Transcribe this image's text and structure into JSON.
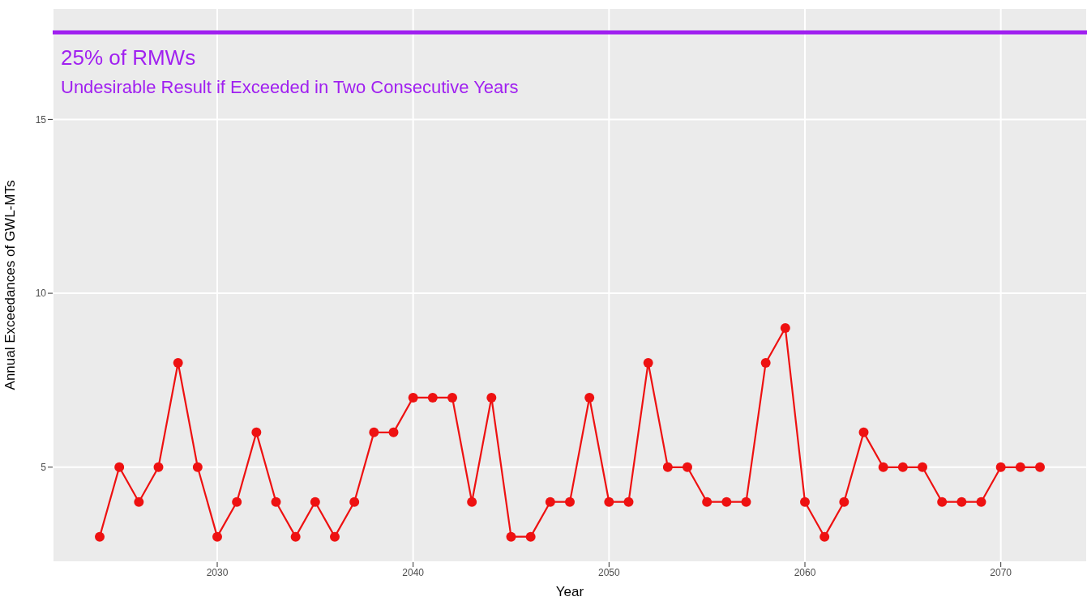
{
  "chart_data": {
    "type": "line",
    "xlabel": "Year",
    "ylabel": "Annual Exceedances of GWL-MTs",
    "x": [
      2024,
      2025,
      2026,
      2027,
      2028,
      2029,
      2030,
      2031,
      2032,
      2033,
      2034,
      2035,
      2036,
      2037,
      2038,
      2039,
      2040,
      2041,
      2042,
      2043,
      2044,
      2045,
      2046,
      2047,
      2048,
      2049,
      2050,
      2051,
      2052,
      2053,
      2054,
      2055,
      2056,
      2057,
      2058,
      2059,
      2060,
      2061,
      2062,
      2063,
      2064,
      2065,
      2066,
      2067,
      2068,
      2069,
      2070,
      2071,
      2072
    ],
    "series": [
      {
        "color": "#ee1111",
        "values": [
          3,
          5,
          4,
          5,
          8,
          5,
          3,
          4,
          6,
          4,
          3,
          4,
          3,
          4,
          6,
          6,
          7,
          7,
          7,
          4,
          7,
          3,
          3,
          4,
          4,
          7,
          4,
          4,
          8,
          5,
          5,
          4,
          4,
          4,
          8,
          9,
          4,
          3,
          4,
          6,
          5,
          5,
          5,
          4,
          4,
          4,
          5,
          5,
          5
        ]
      }
    ],
    "xlim": [
      2021.6,
      2074.4
    ],
    "xticks": [
      2030,
      2040,
      2050,
      2060,
      2070
    ],
    "ylim": [
      2.27,
      18.2
    ],
    "yticks": [
      5,
      10,
      15
    ],
    "ref_lines": [
      {
        "axis": "y",
        "value": 17.5,
        "label": "25% of RMWs",
        "color": "#a020f0"
      }
    ],
    "annotations": [
      "Undesirable Result if Exceeded in Two Consecutive Years"
    ],
    "grid": true,
    "marker": "circle",
    "line_style": "solid"
  }
}
